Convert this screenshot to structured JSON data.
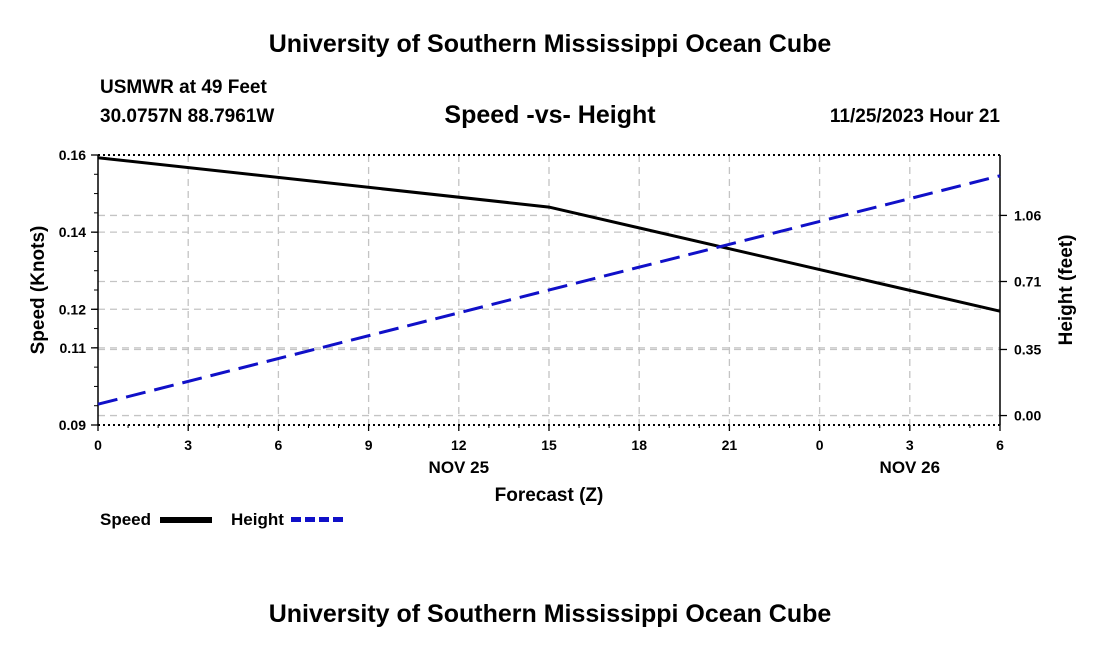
{
  "page": {
    "title": "University of Southern Mississippi Ocean Cube",
    "footer_title": "University of Southern Mississippi Ocean Cube",
    "station": "USMWR at 49 Feet",
    "coords": "30.0757N  88.7961W",
    "subtitle": "Speed -vs- Height",
    "date": "11/25/2023 Hour 21"
  },
  "chart_data": {
    "type": "line",
    "title": "Speed -vs- Height",
    "xlabel": "Forecast (Z)",
    "ylabel_left": "Speed (Knots)",
    "ylabel_right": "Height (feet)",
    "x_hours": [
      0,
      3,
      6,
      9,
      12,
      15,
      18,
      21,
      24,
      27,
      30
    ],
    "x_tick_labels": [
      "0",
      "3",
      "6",
      "9",
      "12",
      "15",
      "18",
      "21",
      "0",
      "3",
      "6"
    ],
    "date_labels": [
      {
        "hour": 12,
        "label": "NOV 25"
      },
      {
        "hour": 27,
        "label": "NOV 26"
      }
    ],
    "left_axis": {
      "ticks": [
        0.09,
        0.11,
        0.12,
        0.14,
        0.16
      ],
      "tick_labels": [
        "0.09",
        "0.11",
        "0.12",
        "0.14",
        "0.16"
      ],
      "ylim": [
        0.09,
        0.16
      ]
    },
    "right_axis": {
      "ticks": [
        0.0,
        0.35,
        0.71,
        1.06
      ],
      "tick_labels": [
        "0.00",
        "0.35",
        "0.71",
        "1.06"
      ],
      "ylim": [
        -0.05,
        1.38
      ]
    },
    "series": [
      {
        "name": "Speed",
        "axis": "left",
        "color": "#000000",
        "style": "solid",
        "x": [
          0,
          15,
          30
        ],
        "values": [
          0.1593,
          0.1465,
          0.1195
        ]
      },
      {
        "name": "Height",
        "axis": "right",
        "color": "#1010c8",
        "style": "dashed",
        "x": [
          0,
          30
        ],
        "values": [
          0.06,
          1.27
        ]
      }
    ],
    "legend": {
      "position": "bottom-left",
      "items": [
        "Speed",
        "Height"
      ]
    },
    "grid": true
  }
}
